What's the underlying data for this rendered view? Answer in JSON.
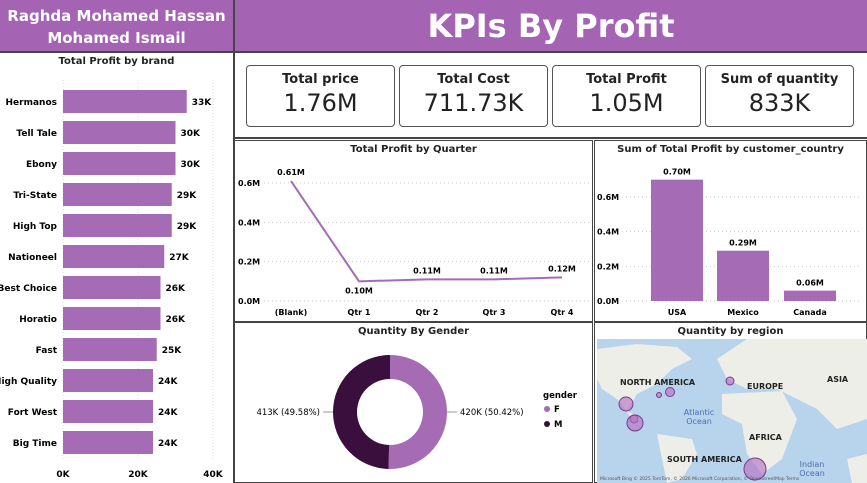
{
  "header": {
    "author_line1": "Raghda Mohamed Hassan",
    "author_line2": "Mohamed Ismail",
    "title": "KPIs By Profit"
  },
  "kpis": [
    {
      "label": "Total price",
      "value": "1.76M"
    },
    {
      "label": "Total Cost",
      "value": "711.73K"
    },
    {
      "label": "Total Profit",
      "value": "1.05M"
    },
    {
      "label": "Sum of quantity",
      "value": "833K"
    }
  ],
  "colors": {
    "accent": "#a463b3",
    "bar": "#a66bb5",
    "dark": "#3a0f3d"
  },
  "chart_data": [
    {
      "type": "bar",
      "orientation": "horizontal",
      "title": "Total Profit by brand",
      "categories": [
        "Hermanos",
        "Tell Tale",
        "Ebony",
        "Tri-State",
        "High Top",
        "Nationeel",
        "Best Choice",
        "Horatio",
        "Fast",
        "High Quality",
        "Fort West",
        "Big Time"
      ],
      "values": [
        33,
        30,
        30,
        29,
        29,
        27,
        26,
        26,
        25,
        24,
        24,
        24
      ],
      "labels": [
        "33K",
        "30K",
        "30K",
        "29K",
        "29K",
        "27K",
        "26K",
        "26K",
        "25K",
        "24K",
        "24K",
        "24K"
      ],
      "xticks": [
        "0K",
        "20K",
        "40K"
      ],
      "xlim": [
        0,
        40
      ],
      "unit": "K"
    },
    {
      "type": "line",
      "title": "Total Profit by Quarter",
      "categories": [
        "(Blank)",
        "Qtr 1",
        "Qtr 2",
        "Qtr 3",
        "Qtr 4"
      ],
      "values": [
        0.61,
        0.1,
        0.11,
        0.11,
        0.12
      ],
      "labels": [
        "0.61M",
        "0.10M",
        "0.11M",
        "0.11M",
        "0.12M"
      ],
      "yticks": [
        "0.0M",
        "0.2M",
        "0.4M",
        "0.6M"
      ],
      "ylim": [
        0,
        0.6
      ],
      "grid": true
    },
    {
      "type": "bar",
      "title": "Sum of Total Profit by customer_country",
      "categories": [
        "USA",
        "Mexico",
        "Canada"
      ],
      "values": [
        0.7,
        0.29,
        0.06
      ],
      "labels": [
        "0.70M",
        "0.29M",
        "0.06M"
      ],
      "yticks": [
        "0.0M",
        "0.2M",
        "0.4M",
        "0.6M"
      ],
      "ylim": [
        0,
        0.7
      ],
      "grid": true
    },
    {
      "type": "pie",
      "subtype": "donut",
      "title": "Quantity By Gender",
      "legend_title": "gender",
      "legend": "right",
      "slices": [
        {
          "name": "F",
          "value": 420,
          "label": "420K (50.42%)"
        },
        {
          "name": "M",
          "value": 413,
          "label": "413K (49.58%)"
        }
      ]
    }
  ],
  "map": {
    "title": "Quantity by region",
    "labels": [
      "NORTH AMERICA",
      "EUROPE",
      "ASIA",
      "AFRICA",
      "SOUTH AMERICA"
    ],
    "oceans": [
      "Atlantic",
      "Ocean",
      "Indian",
      "Ocean"
    ],
    "attribution": "Microsoft Bing © 2025 TomTom, © 2026 Microsoft Corporation, © OpenStreetMap  Terms"
  }
}
